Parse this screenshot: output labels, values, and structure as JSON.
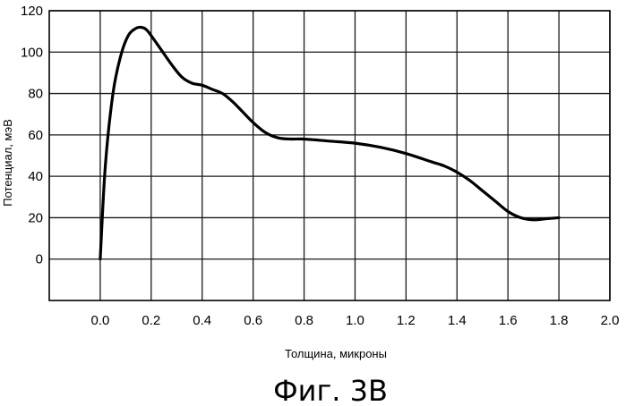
{
  "chart_data": {
    "type": "line",
    "title": "",
    "xlabel": "Толщина, микроны",
    "ylabel": "Потенциал, мэВ",
    "xlim": [
      -0.2,
      2.0
    ],
    "ylim": [
      -20,
      120
    ],
    "x_ticks": [
      0.0,
      0.2,
      0.4,
      0.6,
      0.8,
      1.0,
      1.2,
      1.4,
      1.6,
      1.8,
      2.0
    ],
    "x_tick_labels": [
      "0.0",
      "0.2",
      "0.4",
      "0.6",
      "0.8",
      "1.0",
      "1.2",
      "1.4",
      "1.6",
      "1.8",
      "2.0"
    ],
    "y_ticks": [
      0,
      20,
      40,
      60,
      80,
      100,
      120
    ],
    "y_tick_labels": [
      "0",
      "20",
      "40",
      "60",
      "80",
      "100",
      "120"
    ],
    "grid": true,
    "series": [
      {
        "x": [
          0.0,
          0.02,
          0.05,
          0.08,
          0.11,
          0.14,
          0.16,
          0.18,
          0.2,
          0.24,
          0.28,
          0.32,
          0.36,
          0.4,
          0.44,
          0.48,
          0.52,
          0.56,
          0.6,
          0.65,
          0.7,
          0.75,
          0.8,
          0.9,
          1.0,
          1.1,
          1.2,
          1.3,
          1.35,
          1.4,
          1.45,
          1.5,
          1.55,
          1.6,
          1.65,
          1.7,
          1.75,
          1.8
        ],
        "y": [
          0,
          45,
          80,
          98,
          108,
          111.5,
          112,
          111,
          108,
          101,
          94,
          88,
          85,
          84,
          82,
          80,
          76,
          71,
          66,
          61,
          58.5,
          58,
          58,
          57,
          56,
          54,
          51,
          47,
          45,
          42,
          38,
          33,
          28,
          23,
          20,
          19,
          19.5,
          20
        ]
      }
    ]
  },
  "caption": "Фиг. 3B"
}
